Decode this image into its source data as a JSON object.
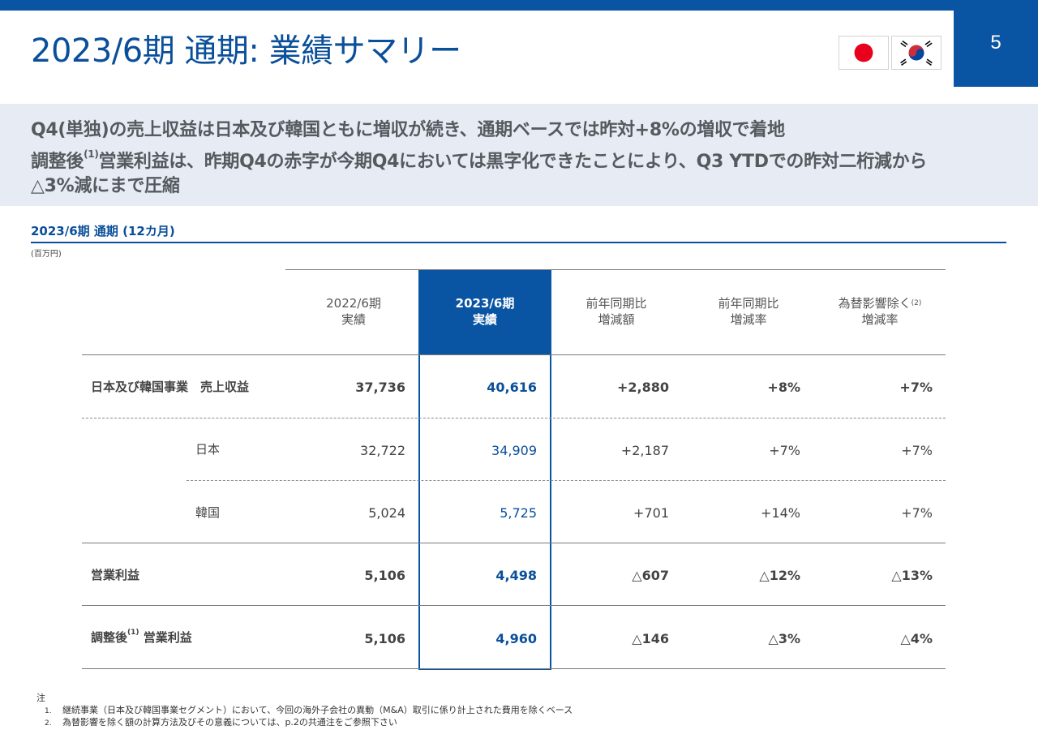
{
  "header": {
    "title": "2023/6期 通期: 業績サマリー",
    "page_number": "5"
  },
  "summary": {
    "line1": "Q4(単独)の売上収益は日本及び韓国ともに増収が続き、通期ベースでは昨対+8%の増収で着地",
    "line2_a": "調整後",
    "line2_sup": "(1)",
    "line2_b": "営業利益は、昨期Q4の赤字が今期Q4においては黒字化できたことにより、Q3 YTDでの昨対二桁減から",
    "line3": "△3%減にまで圧縮"
  },
  "section": {
    "title": "2023/6期 通期 (12カ月)",
    "unit": "(百万円)"
  },
  "table": {
    "headers": [
      {
        "l1": "2022/6期",
        "l2": "実績",
        "sup": ""
      },
      {
        "l1": "2023/6期",
        "l2": "実績",
        "sup": ""
      },
      {
        "l1": "前年同期比",
        "l2": "増減額",
        "sup": ""
      },
      {
        "l1": "前年同期比",
        "l2": "増減率",
        "sup": ""
      },
      {
        "l1": "為替影響除く",
        "l2": "増減率",
        "sup": "(2)"
      }
    ],
    "rows": [
      {
        "label": "日本及び韓国事業　売上収益",
        "sup": "",
        "label2": "",
        "values": [
          "37,736",
          "40,616",
          "+2,880",
          "+8%",
          "+7%"
        ]
      },
      {
        "label": "日本",
        "sup": "",
        "label2": "",
        "values": [
          "32,722",
          "34,909",
          "+2,187",
          "+7%",
          "+7%"
        ]
      },
      {
        "label": "韓国",
        "sup": "",
        "label2": "",
        "values": [
          "5,024",
          "5,725",
          "+701",
          "+14%",
          "+7%"
        ]
      },
      {
        "label": "営業利益",
        "sup": "",
        "label2": "",
        "values": [
          "5,106",
          "4,498",
          "△607",
          "△12%",
          "△13%"
        ]
      },
      {
        "label": "調整後",
        "sup": "(1)",
        "label2": " 営業利益",
        "values": [
          "5,106",
          "4,960",
          "△146",
          "△3%",
          "△4%"
        ]
      }
    ]
  },
  "notes": {
    "heading": "注",
    "items": [
      {
        "num": "1.",
        "text": "継続事業（日本及び韓国事業セグメント）において、今回の海外子会社の異動（M&A）取引に係り計上された費用を除くベース"
      },
      {
        "num": "2.",
        "text": "為替影響を除く額の計算方法及びその意義については、p.2の共通注をご参照下さい"
      }
    ]
  },
  "flags": {
    "japan": "japan-flag-icon",
    "korea": "korea-flag-icon"
  },
  "colors": {
    "brand_blue": "#0a55a3",
    "summary_bg": "#e7ecf4"
  }
}
